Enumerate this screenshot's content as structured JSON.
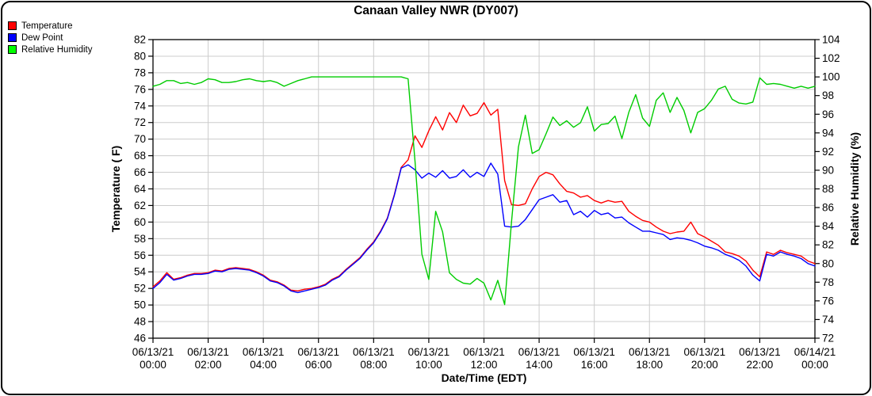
{
  "title": "Canaan Valley NWR (DY007)",
  "legend": {
    "items": [
      {
        "label": "Temperature",
        "color": "#ff0000"
      },
      {
        "label": "Dew Point",
        "color": "#0000ff"
      },
      {
        "label": "Relative Humidity",
        "color": "#00ff00"
      }
    ]
  },
  "chart_data": {
    "type": "line",
    "title": "Canaan Valley NWR (DY007)",
    "xlabel": "Date/Time (EDT)",
    "ylabel_left": "Temperature ( F)",
    "ylabel_right": "Relative Humidity (%)",
    "grid": "light gray horizontal lines at each left-axis tick and vertical lines at each 2-hour tick",
    "legend_position": "top-left outside plot",
    "y_left": {
      "min": 46,
      "max": 82,
      "tick_step": 2,
      "units": "F"
    },
    "y_right": {
      "min": 72,
      "max": 104,
      "tick_step": 2,
      "units": "%"
    },
    "x_ticks": [
      {
        "hour": 0,
        "date": "06/13/21",
        "time": "00:00"
      },
      {
        "hour": 2,
        "date": "06/13/21",
        "time": "02:00"
      },
      {
        "hour": 4,
        "date": "06/13/21",
        "time": "04:00"
      },
      {
        "hour": 6,
        "date": "06/13/21",
        "time": "06:00"
      },
      {
        "hour": 8,
        "date": "06/13/21",
        "time": "08:00"
      },
      {
        "hour": 10,
        "date": "06/13/21",
        "time": "10:00"
      },
      {
        "hour": 12,
        "date": "06/13/21",
        "time": "12:00"
      },
      {
        "hour": 14,
        "date": "06/13/21",
        "time": "14:00"
      },
      {
        "hour": 16,
        "date": "06/13/21",
        "time": "16:00"
      },
      {
        "hour": 18,
        "date": "06/13/21",
        "time": "18:00"
      },
      {
        "hour": 20,
        "date": "06/13/21",
        "time": "20:00"
      },
      {
        "hour": 22,
        "date": "06/13/21",
        "time": "22:00"
      },
      {
        "hour": 24,
        "date": "06/14/21",
        "time": "00:00"
      }
    ],
    "x_hours": [
      0,
      0.25,
      0.5,
      0.75,
      1,
      1.25,
      1.5,
      1.75,
      2,
      2.25,
      2.5,
      2.75,
      3,
      3.25,
      3.5,
      3.75,
      4,
      4.25,
      4.5,
      4.75,
      5,
      5.25,
      5.5,
      5.75,
      6,
      6.25,
      6.5,
      6.75,
      7,
      7.25,
      7.5,
      7.75,
      8,
      8.25,
      8.5,
      8.75,
      9,
      9.25,
      9.5,
      9.75,
      10,
      10.25,
      10.5,
      10.75,
      11,
      11.25,
      11.5,
      11.75,
      12,
      12.25,
      12.5,
      12.75,
      13,
      13.25,
      13.5,
      13.75,
      14,
      14.25,
      14.5,
      14.75,
      15,
      15.25,
      15.5,
      15.75,
      16,
      16.25,
      16.5,
      16.75,
      17,
      17.25,
      17.5,
      17.75,
      18,
      18.25,
      18.5,
      18.75,
      19,
      19.25,
      19.5,
      19.75,
      20,
      20.25,
      20.5,
      20.75,
      21,
      21.25,
      21.5,
      21.75,
      22,
      22.25,
      22.5,
      22.75,
      23,
      23.25,
      23.5,
      23.75,
      24
    ],
    "series": [
      {
        "name": "Temperature",
        "axis": "left",
        "color": "#ff0000",
        "values": [
          52.2,
          52.9,
          53.9,
          53.1,
          53.3,
          53.6,
          53.8,
          53.8,
          53.9,
          54.2,
          54.1,
          54.4,
          54.5,
          54.4,
          54.3,
          54.0,
          53.6,
          53.0,
          52.8,
          52.4,
          51.8,
          51.7,
          51.9,
          52.0,
          52.2,
          52.5,
          53.1,
          53.5,
          54.3,
          55.0,
          55.7,
          56.7,
          57.6,
          58.9,
          60.5,
          63.3,
          66.6,
          67.5,
          70.4,
          69.0,
          71.0,
          72.7,
          71.1,
          73.2,
          72.0,
          74.1,
          72.8,
          73.1,
          74.4,
          72.9,
          73.6,
          65.0,
          62.1,
          62.0,
          62.2,
          64.0,
          65.5,
          66.0,
          65.7,
          64.6,
          63.7,
          63.5,
          63.0,
          63.2,
          62.6,
          62.3,
          62.6,
          62.4,
          62.5,
          61.3,
          60.7,
          60.2,
          60.0,
          59.4,
          58.9,
          58.6,
          58.8,
          58.9,
          60.0,
          58.6,
          58.2,
          57.7,
          57.2,
          56.4,
          56.2,
          55.9,
          55.3,
          54.2,
          53.4,
          56.4,
          56.1,
          56.6,
          56.3,
          56.1,
          55.9,
          55.3,
          55.0
        ]
      },
      {
        "name": "Dew Point",
        "axis": "left",
        "color": "#0000ff",
        "values": [
          52.0,
          52.7,
          53.7,
          53.0,
          53.2,
          53.5,
          53.7,
          53.7,
          53.8,
          54.1,
          54.0,
          54.3,
          54.4,
          54.3,
          54.2,
          53.9,
          53.5,
          52.9,
          52.7,
          52.3,
          51.7,
          51.5,
          51.7,
          51.9,
          52.1,
          52.4,
          53.0,
          53.4,
          54.2,
          54.9,
          55.6,
          56.6,
          57.5,
          58.8,
          60.4,
          63.2,
          66.5,
          66.9,
          66.3,
          65.3,
          65.9,
          65.4,
          66.2,
          65.3,
          65.5,
          66.3,
          65.4,
          66.0,
          65.5,
          67.1,
          65.8,
          59.5,
          59.4,
          59.5,
          60.3,
          61.5,
          62.7,
          63.0,
          63.3,
          62.4,
          62.6,
          60.9,
          61.3,
          60.6,
          61.4,
          60.9,
          61.1,
          60.5,
          60.6,
          59.9,
          59.4,
          58.9,
          58.9,
          58.7,
          58.5,
          57.9,
          58.1,
          58.0,
          57.8,
          57.5,
          57.1,
          56.9,
          56.6,
          56.1,
          55.8,
          55.4,
          54.7,
          53.6,
          52.9,
          56.1,
          55.9,
          56.4,
          56.1,
          55.9,
          55.6,
          55.0,
          54.7
        ]
      },
      {
        "name": "Relative Humidity",
        "axis": "right",
        "color": "#00cc00",
        "values": [
          99.0,
          99.2,
          99.6,
          99.6,
          99.3,
          99.4,
          99.2,
          99.4,
          99.8,
          99.7,
          99.4,
          99.4,
          99.5,
          99.7,
          99.8,
          99.6,
          99.5,
          99.6,
          99.4,
          99.0,
          99.3,
          99.6,
          99.8,
          100.0,
          100.0,
          100.0,
          100.0,
          100.0,
          100.0,
          100.0,
          100.0,
          100.0,
          100.0,
          100.0,
          100.0,
          100.0,
          100.0,
          99.8,
          91.0,
          81.0,
          78.3,
          85.6,
          83.4,
          79.0,
          78.3,
          77.9,
          77.8,
          78.4,
          77.9,
          76.1,
          78.2,
          75.6,
          84.5,
          92.5,
          95.9,
          91.8,
          92.2,
          93.9,
          95.7,
          94.8,
          95.3,
          94.6,
          95.1,
          96.8,
          94.2,
          94.9,
          95.0,
          95.8,
          93.4,
          96.2,
          98.1,
          95.6,
          94.7,
          97.5,
          98.3,
          96.2,
          97.8,
          96.4,
          94.0,
          96.2,
          96.6,
          97.5,
          98.7,
          99.0,
          97.6,
          97.2,
          97.1,
          97.3,
          99.9,
          99.2,
          99.3,
          99.2,
          99.0,
          98.8,
          99.0,
          98.8,
          99.0
        ]
      }
    ],
    "colors": {
      "axis": "#000000",
      "grid": "#cccccc",
      "background": "#ffffff"
    }
  }
}
